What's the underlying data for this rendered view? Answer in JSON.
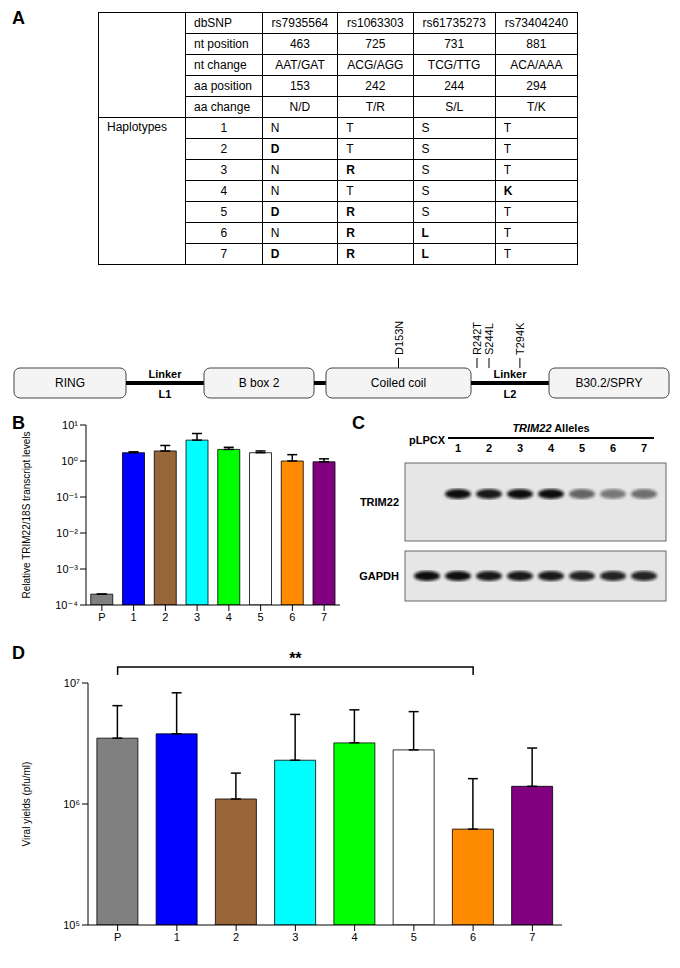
{
  "panel_labels": [
    "A",
    "B",
    "C",
    "D"
  ],
  "table": {
    "header_rows": [
      [
        "dbSNP",
        "rs7935564",
        "rs1063303",
        "rs61735273",
        "rs73404240"
      ],
      [
        "nt position",
        "463",
        "725",
        "731",
        "881"
      ],
      [
        "nt change",
        "AAT/GAT",
        "ACG/AGG",
        "TCG/TTG",
        "ACA/AAA"
      ],
      [
        "aa position",
        "153",
        "242",
        "244",
        "294"
      ],
      [
        "aa change",
        "N/D",
        "T/R",
        "S/L",
        "T/K"
      ]
    ],
    "group_label": "Haplotypes",
    "haplotypes": [
      [
        "1",
        "N",
        "T",
        "S",
        "T"
      ],
      [
        "2",
        "D",
        "T",
        "S",
        "T"
      ],
      [
        "3",
        "N",
        "R",
        "S",
        "T"
      ],
      [
        "4",
        "N",
        "T",
        "S",
        "K"
      ],
      [
        "5",
        "D",
        "R",
        "S",
        "T"
      ],
      [
        "6",
        "N",
        "R",
        "L",
        "T"
      ],
      [
        "7",
        "D",
        "R",
        "L",
        "T"
      ]
    ]
  },
  "diagram": {
    "elements": [
      {
        "kind": "domain",
        "label": "RING"
      },
      {
        "kind": "linker",
        "label": "Linker",
        "sublabel": "L1"
      },
      {
        "kind": "domain",
        "label": "B box 2"
      },
      {
        "kind": "link"
      },
      {
        "kind": "domain",
        "label": "Coiled coil",
        "mutations": [
          "D153N"
        ]
      },
      {
        "kind": "linker",
        "label": "Linker",
        "sublabel": "L2",
        "mutations": [
          "R242T",
          "S244L",
          "T294K"
        ]
      },
      {
        "kind": "domain",
        "label": "B30.2/SPRY"
      }
    ]
  },
  "blot": {
    "lanes": [
      "pLPCX",
      "1",
      "2",
      "3",
      "4",
      "5",
      "6",
      "7"
    ],
    "group_label": "TRIM22 Alleles",
    "rows": [
      "TRIM22",
      "GAPDH"
    ]
  },
  "chart_data": [
    {
      "type": "bar",
      "y_label": "Relative TRIM22/18S transcript levels",
      "categories": [
        "P",
        "1",
        "2",
        "3",
        "4",
        "5",
        "6",
        "7"
      ],
      "values": [
        0.0002,
        1.7,
        1.9,
        3.8,
        2.1,
        1.7,
        1.0,
        0.95
      ],
      "errors": [
        0,
        0.1,
        0.8,
        2.0,
        0.3,
        0.2,
        0.5,
        0.2
      ],
      "colors": [
        "#808080",
        "#0000ff",
        "#99663a",
        "#00ffff",
        "#00ff00",
        "#ffffff",
        "#ff8c00",
        "#800080"
      ],
      "log": "y",
      "ylim": [
        0.0001,
        10
      ],
      "yticks": [
        {
          "value": 0.0001,
          "label": "10⁻⁴"
        },
        {
          "value": 0.001,
          "label": "10⁻³"
        },
        {
          "value": 0.01,
          "label": "10⁻²"
        },
        {
          "value": 0.1,
          "label": "10⁻¹"
        },
        {
          "value": 1,
          "label": "10⁰"
        },
        {
          "value": 10,
          "label": "10¹"
        }
      ]
    },
    {
      "type": "bar",
      "y_label": "Viral yields (pfu/ml)",
      "categories": [
        "P",
        "1",
        "2",
        "3",
        "4",
        "5",
        "6",
        "7"
      ],
      "values": [
        3500000,
        3800000,
        1100000,
        2300000,
        3200000,
        2800000,
        620000,
        1400000
      ],
      "errors": [
        3000000,
        4500000,
        700000,
        3200000,
        2800000,
        3000000,
        1000000,
        1500000
      ],
      "colors": [
        "#808080",
        "#0000ff",
        "#99663a",
        "#00ffff",
        "#00ff00",
        "#ffffff",
        "#ff8c00",
        "#800080"
      ],
      "log": "y",
      "ylim": [
        100000,
        10000000
      ],
      "yticks": [
        {
          "value": 100000,
          "label": "10⁵"
        },
        {
          "value": 1000000,
          "label": "10⁶"
        },
        {
          "value": 10000000,
          "label": "10⁷"
        }
      ],
      "significance": {
        "from": "P",
        "to": "6",
        "label": "**"
      }
    }
  ]
}
